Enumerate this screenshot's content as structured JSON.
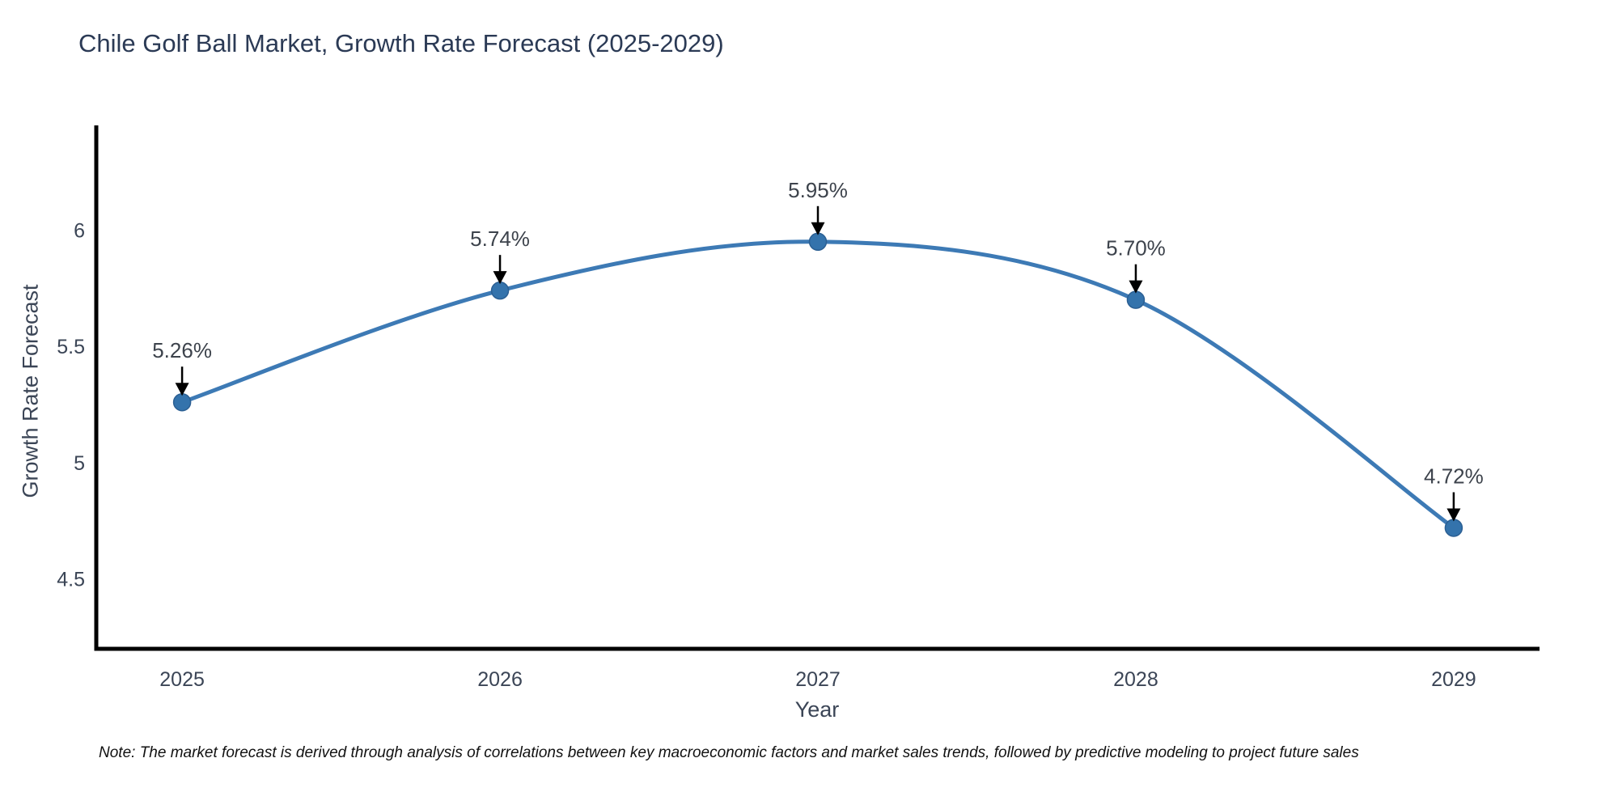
{
  "title": "Chile Golf Ball Market, Growth Rate Forecast (2025-2029)",
  "note": "Note: The market forecast is derived through analysis of correlations between key macroeconomic factors and market sales trends, followed by predictive modeling to project future sales",
  "chart_data": {
    "type": "line",
    "title": "Chile Golf Ball Market, Growth Rate Forecast (2025-2029)",
    "x": [
      2025,
      2026,
      2027,
      2028,
      2029
    ],
    "y": [
      5.26,
      5.74,
      5.95,
      5.7,
      4.72
    ],
    "point_labels": [
      "5.26%",
      "5.74%",
      "5.95%",
      "5.70%",
      "4.72%"
    ],
    "xlabel": "Year",
    "ylabel": "Growth Rate Forecast",
    "xtick_labels": [
      "2025",
      "2026",
      "2027",
      "2028",
      "2029"
    ],
    "ytick_values": [
      4.5,
      5,
      5.5,
      6
    ],
    "ytick_labels": [
      "4.5",
      "5",
      "5.5",
      "6"
    ],
    "ylim": [
      4.2,
      6.45
    ],
    "xlim": [
      2024.73,
      2029.27
    ],
    "grid": false,
    "legend_position": "none",
    "smooth_line": true,
    "colors": {
      "line": "#3d7ab5",
      "marker_fill": "#3473ac",
      "marker_edge": "#2b5f93",
      "annotation_text": "#3d434c",
      "annotation_arrow": "#000000",
      "axis_spine": "#000000",
      "tick_text": "#3b4556",
      "title_text": "#2b3a55",
      "background": "#ffffff"
    }
  }
}
